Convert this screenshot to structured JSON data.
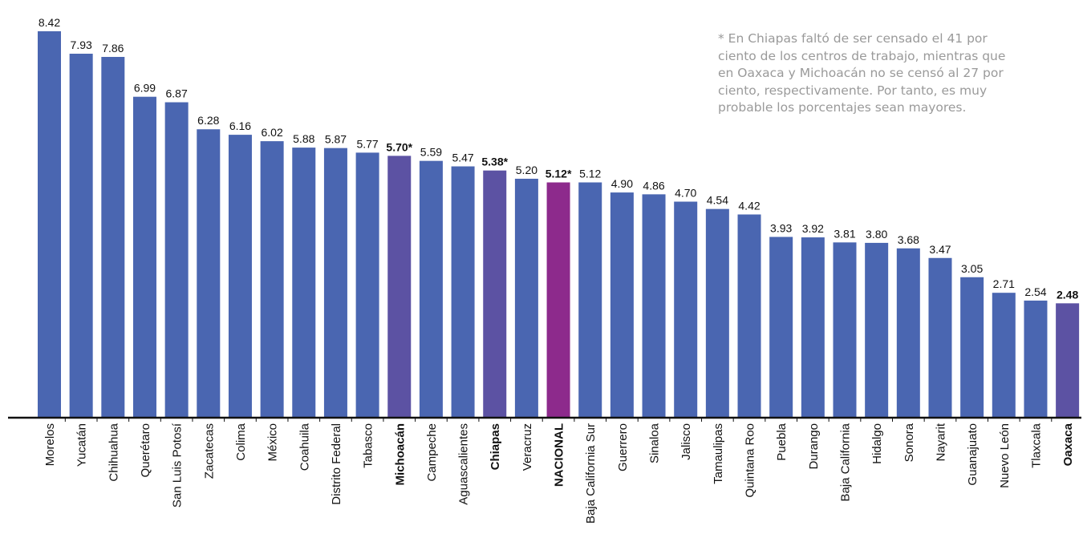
{
  "colors": {
    "bar": "#4a66b1",
    "highlight_state": "#5c52a3",
    "national": "#8d2a8c",
    "axis": "#111111",
    "text": "#111111",
    "note": "#9a9a9a"
  },
  "note": {
    "lines": [
      "* En Chiapas faltó de ser censado el 41 por",
      "ciento de los centros de trabajo, mientras que",
      "en Oaxaca y Michoacán no se censó al 27 por",
      "ciento, respectivamente. Por tanto, es muy",
      "probable los porcentajes sean mayores."
    ]
  },
  "chart_data": {
    "type": "bar",
    "title": "",
    "xlabel": "",
    "ylabel": "",
    "ylim": [
      0,
      8.42
    ],
    "grid": false,
    "categories": [
      "Morelos",
      "Yucatán",
      "Chihuahua",
      "Querétaro",
      "San Luis Potosí",
      "Zacatecas",
      "Colima",
      "México",
      "Coahuila",
      "Distrito Federal",
      "Tabasco",
      "Michoacán",
      "Campeche",
      "Aguascalientes",
      "Chiapas",
      "Veracruz",
      "NACIONAL",
      "Baja California Sur",
      "Guerrero",
      "Sinaloa",
      "Jalisco",
      "Tamaulipas",
      "Quintana Roo",
      "Puebla",
      "Durango",
      "Baja California",
      "Hidalgo",
      "Sonora",
      "Nayarit",
      "Guanajuato",
      "Nuevo León",
      "Tlaxcala",
      "Oaxaca"
    ],
    "values": [
      8.42,
      7.93,
      7.86,
      6.99,
      6.87,
      6.28,
      6.16,
      6.02,
      5.88,
      5.87,
      5.77,
      5.7,
      5.59,
      5.47,
      5.38,
      5.2,
      5.12,
      5.12,
      4.9,
      4.86,
      4.7,
      4.54,
      4.42,
      3.93,
      3.92,
      3.81,
      3.8,
      3.68,
      3.47,
      3.05,
      2.71,
      2.54,
      2.48
    ],
    "value_labels": [
      "8.42",
      "7.93",
      "7.86",
      "6.99",
      "6.87",
      "6.28",
      "6.16",
      "6.02",
      "5.88",
      "5.87",
      "5.77",
      "5.70*",
      "5.59",
      "5.47",
      "5.38*",
      "5.20",
      "5.12*",
      "5.12",
      "4.90",
      "4.86",
      "4.70",
      "4.54",
      "4.42",
      "3.93",
      "3.92",
      "3.81",
      "3.80",
      "3.68",
      "3.47",
      "3.05",
      "2.71",
      "2.54",
      "2.48"
    ],
    "emphasis": [
      "normal",
      "normal",
      "normal",
      "normal",
      "normal",
      "normal",
      "normal",
      "normal",
      "normal",
      "normal",
      "normal",
      "highlight",
      "normal",
      "normal",
      "highlight",
      "normal",
      "national",
      "normal",
      "normal",
      "normal",
      "normal",
      "normal",
      "normal",
      "normal",
      "normal",
      "normal",
      "normal",
      "normal",
      "normal",
      "normal",
      "normal",
      "normal",
      "highlight"
    ]
  }
}
